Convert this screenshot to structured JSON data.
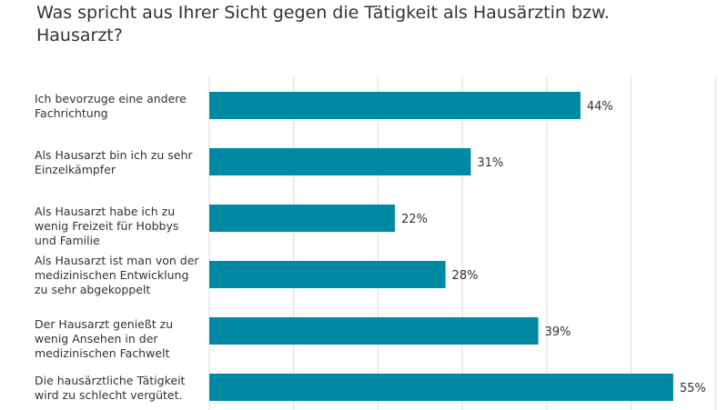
{
  "chart_data": {
    "type": "bar",
    "orientation": "horizontal",
    "title": "Was spricht aus Ihrer Sicht gegen die Tätigkeit als Hausärztin bzw. Hausarzt?",
    "categories": [
      "Ich bevorzuge eine andere Fachrichtung",
      "Als Hausarzt bin ich zu sehr Einzelkämpfer",
      "Als Hausarzt habe ich zu wenig Freizeit für Hobbys und Familie",
      "Als Hausarzt ist man von der medizinischen Entwicklung zu sehr abgekoppelt",
      "Der Hausarzt genießt zu wenig Ansehen in der medizinischen Fachwelt",
      "Die hausärztliche Tätigkeit wird zu schlecht vergütet."
    ],
    "values": [
      44,
      31,
      22,
      28,
      39,
      55
    ],
    "value_labels": [
      "44%",
      "31%",
      "22%",
      "28%",
      "39%",
      "55%"
    ],
    "unit": "%",
    "xlim": [
      0,
      60
    ],
    "grid": true,
    "bar_color": "#0089a3",
    "grid_color": "#dddddd"
  }
}
